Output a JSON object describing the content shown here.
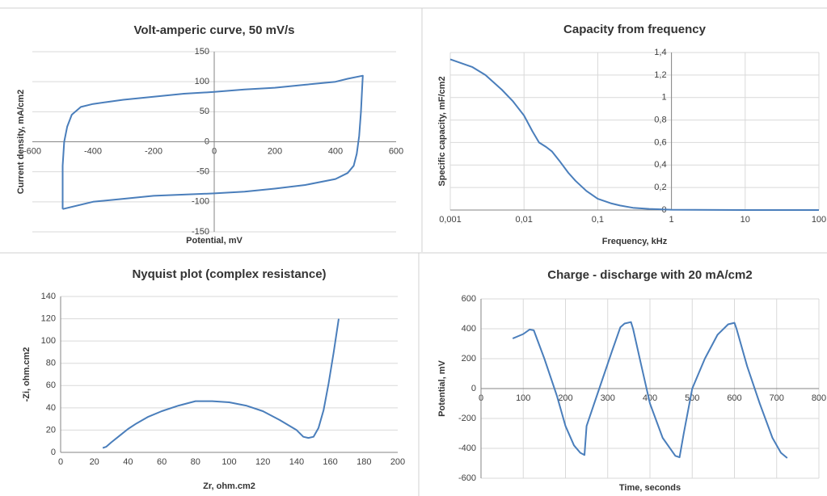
{
  "chart_data": [
    {
      "type": "line",
      "title": "Volt-amperic curve, 50 mV/s",
      "xlabel": "Potential, mV",
      "ylabel": "Current density, mA/cm2",
      "x": [
        -500,
        -400,
        -300,
        -200,
        -100,
        0,
        100,
        200,
        300,
        400,
        440,
        460,
        470,
        478,
        484,
        488,
        490,
        440,
        400,
        300,
        200,
        100,
        0,
        -100,
        -200,
        -300,
        -400,
        -440,
        -470,
        -485,
        -495,
        -500,
        -500,
        -500
      ],
      "values": [
        -112,
        -100,
        -95,
        -90,
        -88,
        -86,
        -83,
        -78,
        -72,
        -62,
        -52,
        -40,
        -20,
        10,
        50,
        90,
        110,
        105,
        100,
        95,
        90,
        87,
        83,
        80,
        75,
        70,
        63,
        58,
        45,
        25,
        0,
        -40,
        -80,
        -112
      ],
      "color": "#4a7ebb",
      "xlim": [
        -600,
        600
      ],
      "ylim": [
        -150,
        150
      ],
      "xticks": [
        -600,
        -400,
        -200,
        0,
        200,
        400,
        600
      ],
      "yticks": [
        -150,
        -100,
        -50,
        0,
        50,
        100,
        150
      ],
      "grid": {
        "x": false,
        "y": true
      }
    },
    {
      "type": "line",
      "title": "Capacity from frequency",
      "xlabel": "Frequency, kHz",
      "ylabel": "Specific capacity,  mF/cm2",
      "x": [
        0.001,
        0.002,
        0.003,
        0.005,
        0.007,
        0.01,
        0.013,
        0.016,
        0.02,
        0.024,
        0.03,
        0.04,
        0.05,
        0.07,
        0.1,
        0.15,
        0.2,
        0.3,
        0.5,
        1,
        10,
        100
      ],
      "values": [
        1.34,
        1.27,
        1.2,
        1.07,
        0.97,
        0.84,
        0.7,
        0.6,
        0.56,
        0.52,
        0.44,
        0.33,
        0.26,
        0.17,
        0.1,
        0.06,
        0.04,
        0.02,
        0.01,
        0.003,
        0,
        0
      ],
      "color": "#4a7ebb",
      "xscale": "log",
      "xlim": [
        0.001,
        100
      ],
      "ylim": [
        0,
        1.4
      ],
      "xticks": [
        {
          "value": 0.001,
          "label": "0,001"
        },
        {
          "value": 0.01,
          "label": "0,01"
        },
        {
          "value": 0.1,
          "label": "0,1"
        },
        1,
        10,
        100
      ],
      "yticks": [
        0,
        {
          "value": 0.2,
          "label": "0,2"
        },
        {
          "value": 0.4,
          "label": "0,4"
        },
        {
          "value": 0.6,
          "label": "0,6"
        },
        {
          "value": 0.8,
          "label": "0,8"
        },
        1,
        {
          "value": 1.2,
          "label": "1,2"
        },
        {
          "value": 1.4,
          "label": "1,4"
        }
      ],
      "grid": {
        "x": true,
        "y": true
      }
    },
    {
      "type": "line",
      "title": "Nyquist plot (complex resistance)",
      "xlabel": "Zr, ohm.cm2",
      "ylabel": "-Zi, ohm.cm2",
      "x": [
        25,
        27,
        30,
        35,
        40,
        45,
        52,
        60,
        70,
        80,
        90,
        100,
        110,
        120,
        130,
        140,
        144,
        147,
        150,
        153,
        156,
        159,
        162,
        165
      ],
      "values": [
        4,
        5,
        9,
        15,
        21,
        26,
        32,
        37,
        42,
        46,
        46,
        45,
        42,
        37,
        29,
        20,
        14,
        13,
        14,
        22,
        38,
        62,
        90,
        120
      ],
      "color": "#4a7ebb",
      "xlim": [
        0,
        200
      ],
      "ylim": [
        0,
        140
      ],
      "xticks": [
        0,
        20,
        40,
        60,
        80,
        100,
        120,
        140,
        160,
        180,
        200
      ],
      "yticks": [
        0,
        20,
        40,
        60,
        80,
        100,
        120,
        140
      ],
      "grid": {
        "x": false,
        "y": true
      }
    },
    {
      "type": "line",
      "title": "Charge - discharge with 20 mA/cm2",
      "xlabel": "Time, seconds",
      "ylabel": "Potential, mV",
      "x": [
        75,
        100,
        115,
        125,
        150,
        180,
        200,
        220,
        235,
        245,
        250,
        280,
        310,
        330,
        340,
        355,
        360,
        380,
        400,
        430,
        460,
        470,
        480,
        500,
        530,
        560,
        585,
        600,
        605,
        630,
        660,
        690,
        710,
        725
      ],
      "values": [
        335,
        365,
        395,
        390,
        200,
        -50,
        -250,
        -380,
        -430,
        -445,
        -250,
        0,
        250,
        410,
        435,
        445,
        400,
        150,
        -100,
        -330,
        -450,
        -460,
        -300,
        0,
        200,
        360,
        430,
        440,
        400,
        150,
        -100,
        -330,
        -430,
        -465
      ],
      "color": "#4a7ebb",
      "xlim": [
        0,
        800
      ],
      "ylim": [
        -600,
        600
      ],
      "xticks": [
        0,
        100,
        200,
        300,
        400,
        500,
        600,
        700,
        800
      ],
      "yticks": [
        -600,
        -400,
        -200,
        0,
        200,
        400,
        600
      ],
      "grid": {
        "x": true,
        "y": true
      }
    }
  ]
}
